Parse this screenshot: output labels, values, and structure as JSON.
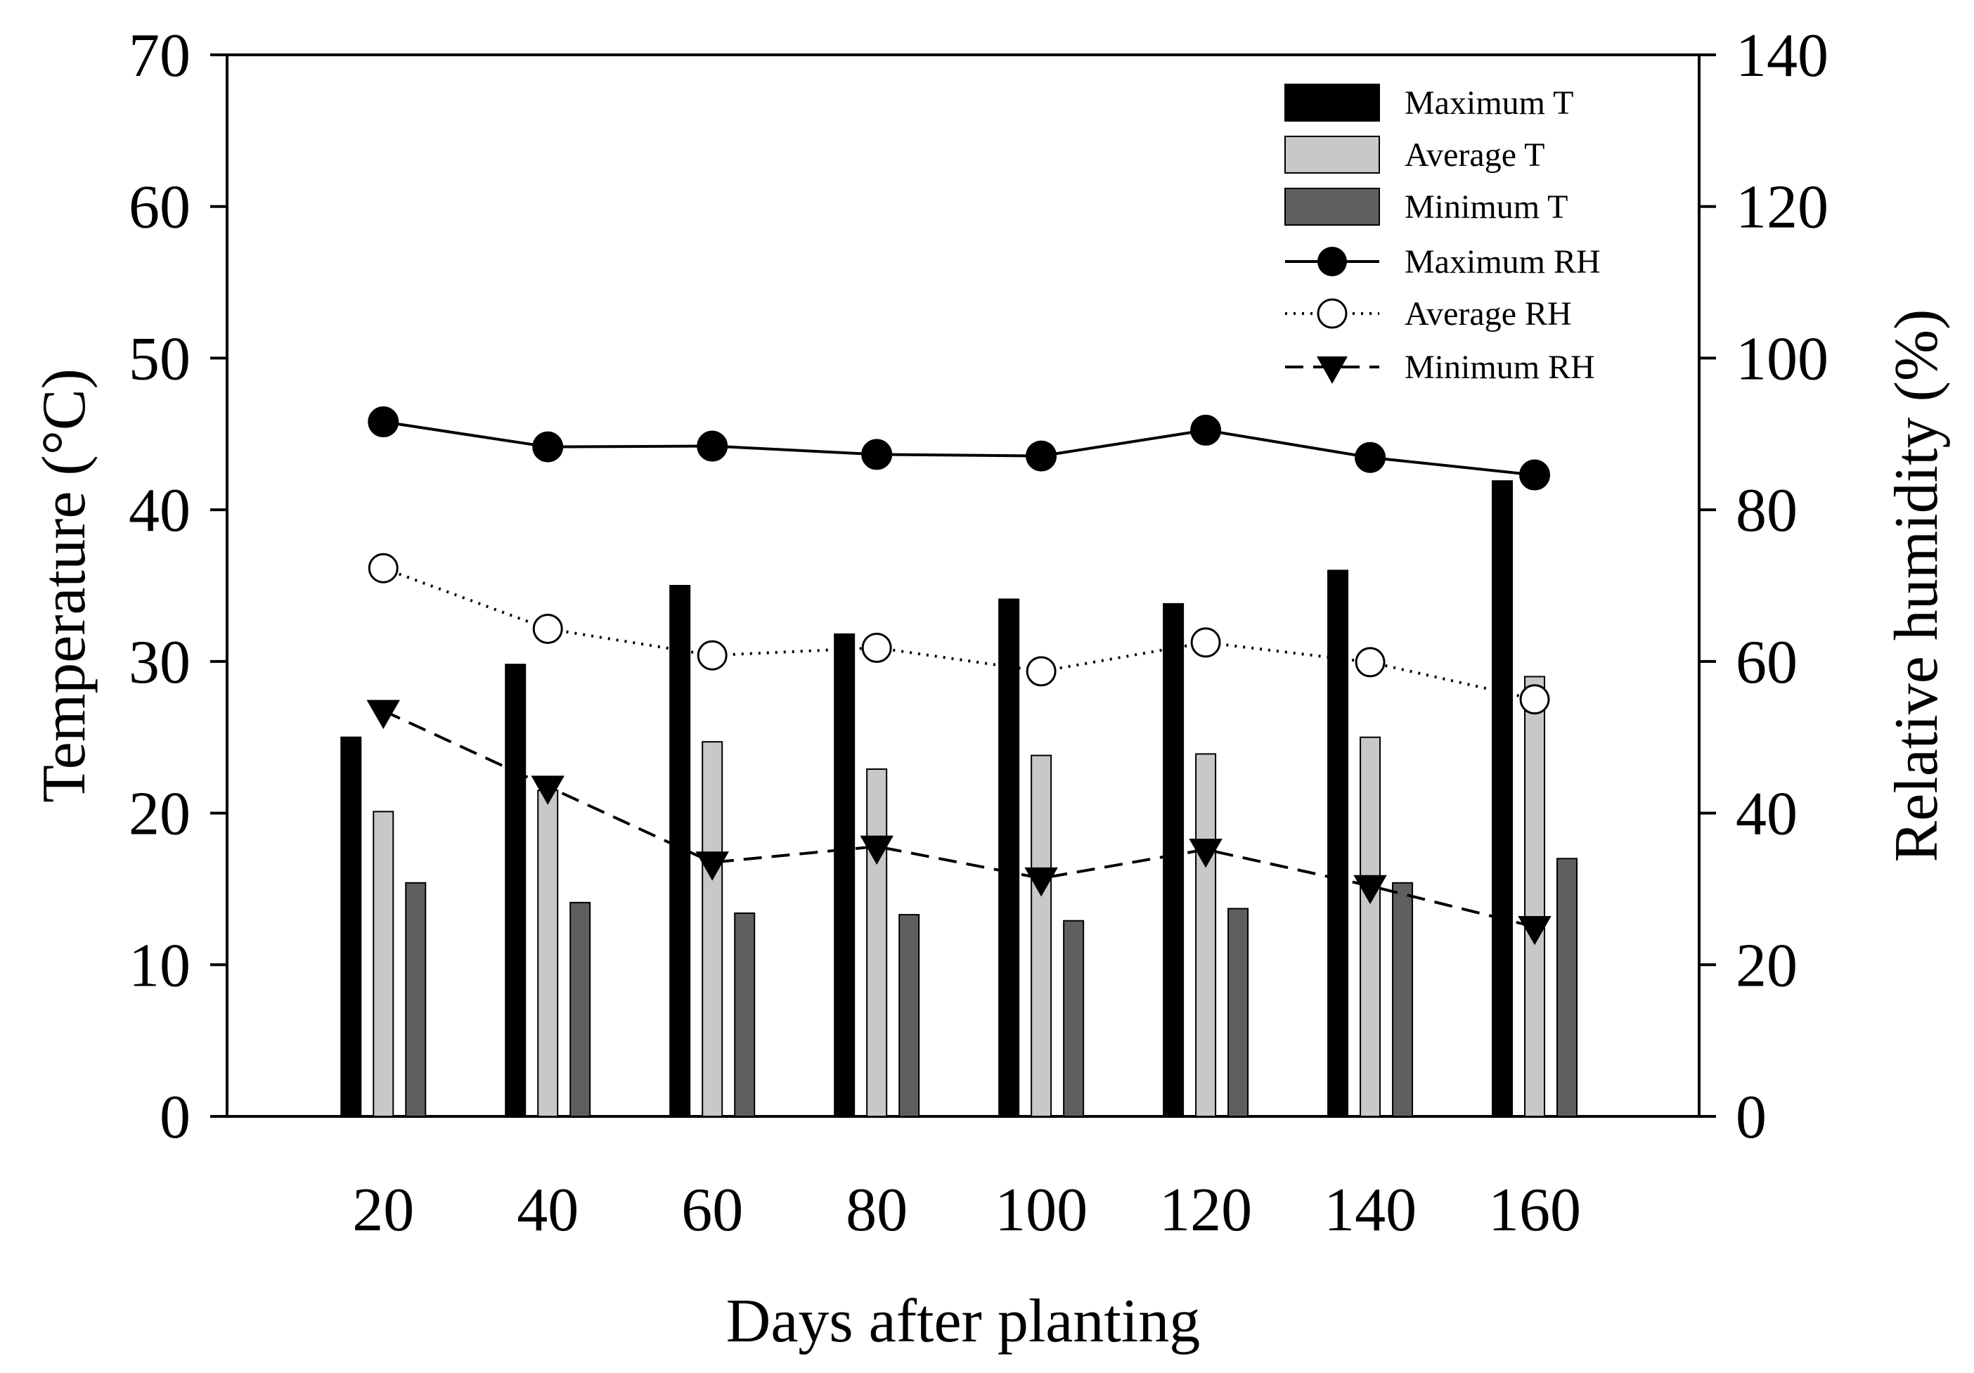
{
  "chart_data": {
    "type": "bar+line",
    "xlabel": "Days after planting",
    "ylabel_left": "Temperature (°C)",
    "ylabel_right": "Relative humidity (%)",
    "categories": [
      "20",
      "40",
      "60",
      "80",
      "100",
      "120",
      "140",
      "160"
    ],
    "x": [
      20,
      40,
      60,
      80,
      100,
      120,
      140,
      160
    ],
    "xlim": [
      1,
      180
    ],
    "ylim_left": [
      0,
      70
    ],
    "ylim_right": [
      0,
      140
    ],
    "yticks_left": [
      "0",
      "10",
      "20",
      "30",
      "40",
      "50",
      "60",
      "70"
    ],
    "yticks_right": [
      "0",
      "20",
      "40",
      "60",
      "80",
      "100",
      "120",
      "140"
    ],
    "grid": false,
    "legend_position": "top-right",
    "bar_series": [
      {
        "name": "Maximum T",
        "values": [
          25.0,
          29.8,
          35.0,
          31.8,
          34.1,
          33.8,
          36.0,
          41.9
        ],
        "color": "#000000"
      },
      {
        "name": "Average T",
        "values": [
          20.1,
          21.5,
          24.7,
          22.9,
          23.8,
          23.9,
          25.0,
          29.0
        ],
        "color": "#c8c8c8"
      },
      {
        "name": "Minimum T",
        "values": [
          15.4,
          14.1,
          13.4,
          13.3,
          12.9,
          13.7,
          15.4,
          17.0
        ],
        "color": "#5f5f5f"
      }
    ],
    "line_series": [
      {
        "name": "Maximum RH",
        "values": [
          91.6,
          88.3,
          88.4,
          87.3,
          87.1,
          90.5,
          86.9,
          84.6
        ],
        "style": "solid",
        "marker": "filled-circle"
      },
      {
        "name": "Average RH",
        "values": [
          72.3,
          64.3,
          60.8,
          61.8,
          58.7,
          62.5,
          59.9,
          55.0
        ],
        "style": "dotted",
        "marker": "open-circle"
      },
      {
        "name": "Minimum RH",
        "values": [
          53.5,
          43.5,
          33.5,
          35.6,
          31.4,
          35.2,
          30.4,
          25.0
        ],
        "style": "dashed",
        "marker": "filled-triangle-down"
      }
    ]
  }
}
